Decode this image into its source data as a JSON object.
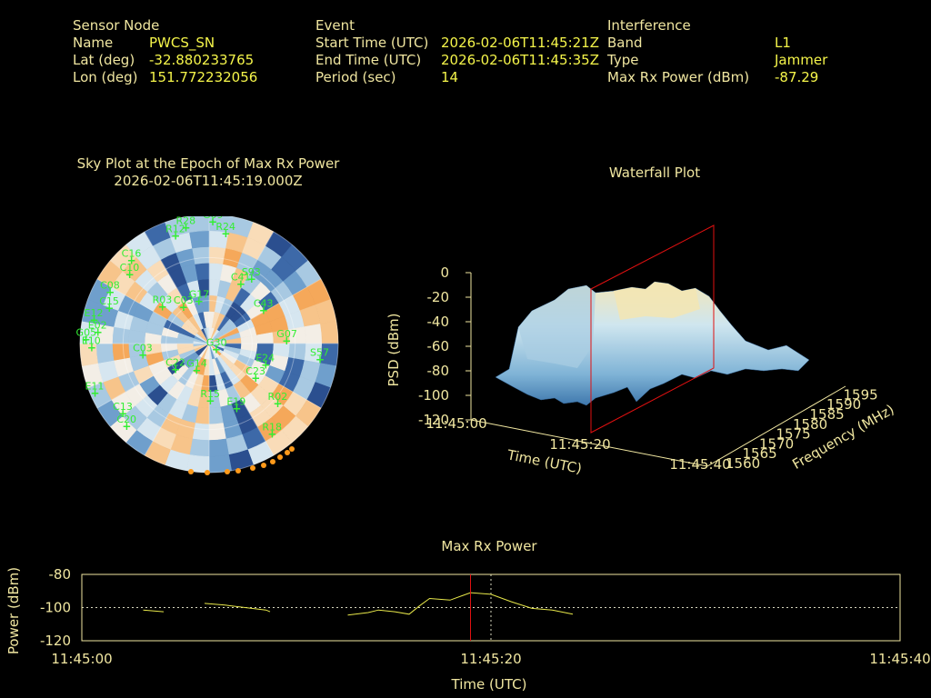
{
  "info": {
    "sensor": {
      "heading": "Sensor Node",
      "name_label": "Name",
      "name_value": "PWCS_SN",
      "lat_label": "Lat (deg)",
      "lat_value": "-32.880233765",
      "lon_label": "Lon (deg)",
      "lon_value": "151.772232056"
    },
    "event": {
      "heading": "Event",
      "start_label": "Start Time (UTC)",
      "start_value": "2026-02-06T11:45:21Z",
      "end_label": "End Time (UTC)",
      "end_value": "2026-02-06T11:45:35Z",
      "period_label": "Period (sec)",
      "period_value": "14"
    },
    "interference": {
      "heading": "Interference",
      "band_label": "Band",
      "band_value": "L1",
      "type_label": "Type",
      "type_value": "Jammer",
      "power_label": "Max Rx Power (dBm)",
      "power_value": "-87.29"
    }
  },
  "skyplot": {
    "title": "Sky Plot at the Epoch of Max Rx Power",
    "subtitle": "2026-02-06T11:45:19.000Z",
    "satellites": [
      {
        "id": "G09",
        "az": 3,
        "el": 5
      },
      {
        "id": "R24",
        "az": 10,
        "el": 12
      },
      {
        "id": "R28",
        "az": 350,
        "el": 8
      },
      {
        "id": "R12",
        "az": 344,
        "el": 12
      },
      {
        "id": "C16",
        "az": 318,
        "el": 12
      },
      {
        "id": "C10",
        "az": 312,
        "el": 18
      },
      {
        "id": "C08",
        "az": 298,
        "el": 14
      },
      {
        "id": "C15",
        "az": 290,
        "el": 18
      },
      {
        "id": "E12",
        "az": 282,
        "el": 10
      },
      {
        "id": "E02",
        "az": 276,
        "el": 14
      },
      {
        "id": "G05",
        "az": 272,
        "el": 6
      },
      {
        "id": "E10",
        "az": 268,
        "el": 10
      },
      {
        "id": "E11",
        "az": 246,
        "el": 5
      },
      {
        "id": "C13",
        "az": 230,
        "el": 14
      },
      {
        "id": "C20",
        "az": 224,
        "el": 10
      },
      {
        "id": "C03",
        "az": 260,
        "el": 45
      },
      {
        "id": "C22",
        "az": 230,
        "el": 62
      },
      {
        "id": "G14",
        "az": 200,
        "el": 70
      },
      {
        "id": "R15",
        "az": 176,
        "el": 50
      },
      {
        "id": "G30",
        "az": 120,
        "el": 82
      },
      {
        "id": "C43",
        "az": 60,
        "el": 44
      },
      {
        "id": "G07",
        "az": 88,
        "el": 34
      },
      {
        "id": "E24",
        "az": 110,
        "el": 46
      },
      {
        "id": "C23",
        "az": 125,
        "el": 48
      },
      {
        "id": "E19",
        "az": 155,
        "el": 40
      },
      {
        "id": "R02",
        "az": 130,
        "el": 25
      },
      {
        "id": "S57",
        "az": 98,
        "el": 10
      },
      {
        "id": "S93",
        "az": 35,
        "el": 35
      },
      {
        "id": "C41",
        "az": 30,
        "el": 42
      },
      {
        "id": "G17",
        "az": 350,
        "el": 60
      },
      {
        "id": "R03",
        "az": 310,
        "el": 50
      },
      {
        "id": "C03",
        "az": 328,
        "el": 60
      },
      {
        "id": "R18",
        "az": 144,
        "el": 12
      }
    ]
  },
  "waterfall": {
    "title": "Waterfall Plot",
    "z_label": "PSD (dBm)",
    "z_ticks": [
      "0",
      "-20",
      "-40",
      "-60",
      "-80",
      "-100",
      "-120"
    ],
    "time_label": "Time (UTC)",
    "time_ticks": [
      "11:45:00",
      "11:45:20",
      "11:45:40"
    ],
    "freq_label": "Frequency (MHz)",
    "freq_ticks": [
      "1560",
      "1565",
      "1570",
      "1575",
      "1580",
      "1585",
      "1590",
      "1595"
    ]
  },
  "maxpower": {
    "title": "Max Rx Power",
    "ylabel": "Power (dBm)",
    "xlabel": "Time (UTC)",
    "y_ticks": [
      "-80",
      "-100",
      "-120"
    ],
    "x_ticks": [
      "11:45:00",
      "11:45:20",
      "11:45:40"
    ],
    "line_color": "#e8e84a",
    "marker_color": "#e01010"
  },
  "chart_data": {
    "type": "line",
    "title": "Max Rx Power",
    "xlabel": "Time (UTC)",
    "ylabel": "Power (dBm)",
    "xlim": [
      0,
      40
    ],
    "ylim": [
      -120,
      -80
    ],
    "x_unit": "seconds after 11:45:00",
    "grid": true,
    "marker_x": 19,
    "segments": [
      [
        [
          3,
          -101.5
        ],
        [
          4,
          -102.5
        ]
      ],
      [
        [
          6,
          -97.5
        ],
        [
          7,
          -98.5
        ],
        [
          9,
          -101.5
        ],
        [
          9.2,
          -102.5
        ]
      ],
      [
        [
          13,
          -104.5
        ],
        [
          14,
          -103
        ],
        [
          14.5,
          -101.5
        ],
        [
          15.3,
          -102.5
        ],
        [
          16,
          -104
        ],
        [
          16.5,
          -99
        ],
        [
          17,
          -94.5
        ],
        [
          18,
          -95.5
        ],
        [
          19,
          -91
        ],
        [
          20,
          -92
        ],
        [
          21,
          -96.5
        ],
        [
          22,
          -100.5
        ],
        [
          23,
          -101.5
        ],
        [
          24,
          -104
        ]
      ]
    ]
  }
}
